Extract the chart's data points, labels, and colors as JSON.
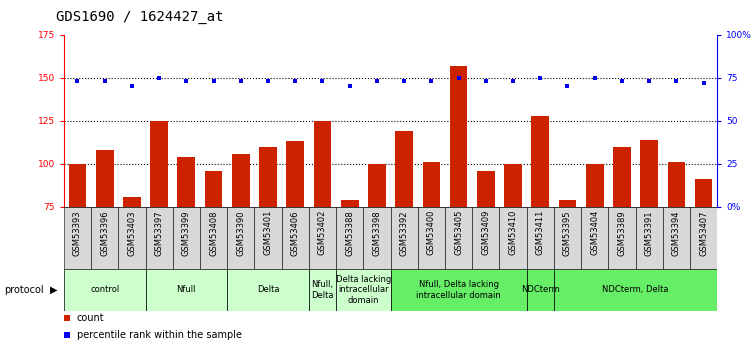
{
  "title": "GDS1690 / 1624427_at",
  "samples": [
    "GSM53393",
    "GSM53396",
    "GSM53403",
    "GSM53397",
    "GSM53399",
    "GSM53408",
    "GSM53390",
    "GSM53401",
    "GSM53406",
    "GSM53402",
    "GSM53388",
    "GSM53398",
    "GSM53392",
    "GSM53400",
    "GSM53405",
    "GSM53409",
    "GSM53410",
    "GSM53411",
    "GSM53395",
    "GSM53404",
    "GSM53389",
    "GSM53391",
    "GSM53394",
    "GSM53407"
  ],
  "counts": [
    100,
    108,
    81,
    125,
    104,
    96,
    106,
    110,
    113,
    125,
    79,
    100,
    119,
    101,
    157,
    96,
    100,
    128,
    79,
    100,
    110,
    114,
    101,
    91
  ],
  "percentile_ranks": [
    73,
    73,
    70,
    75,
    73,
    73,
    73,
    73,
    73,
    73,
    70,
    73,
    73,
    73,
    75,
    73,
    73,
    75,
    70,
    75,
    73,
    73,
    73,
    72
  ],
  "bar_color": "#cc2200",
  "dot_color": "#0000ee",
  "protocol_groups": [
    {
      "label": "control",
      "start": 0,
      "end": 2,
      "color": "#ccffcc"
    },
    {
      "label": "Nfull",
      "start": 3,
      "end": 5,
      "color": "#ccffcc"
    },
    {
      "label": "Delta",
      "start": 6,
      "end": 8,
      "color": "#ccffcc"
    },
    {
      "label": "Nfull,\nDelta",
      "start": 9,
      "end": 9,
      "color": "#ccffcc"
    },
    {
      "label": "Delta lacking\nintracellular\ndomain",
      "start": 10,
      "end": 11,
      "color": "#ccffcc"
    },
    {
      "label": "Nfull, Delta lacking\nintracellular domain",
      "start": 12,
      "end": 16,
      "color": "#66ee66"
    },
    {
      "label": "NDCterm",
      "start": 17,
      "end": 17,
      "color": "#66ee66"
    },
    {
      "label": "NDCterm, Delta",
      "start": 18,
      "end": 23,
      "color": "#66ee66"
    }
  ],
  "ylim_left": [
    75,
    175
  ],
  "ylim_right": [
    0,
    100
  ],
  "yticks_left": [
    75,
    100,
    125,
    150,
    175
  ],
  "yticks_right": [
    0,
    25,
    50,
    75,
    100
  ],
  "ytick_labels_right": [
    "0",
    "25",
    "50",
    "75",
    "100%"
  ],
  "ytick_labels_left": [
    "75",
    "100",
    "125",
    "150",
    "175"
  ],
  "hlines": [
    100,
    125,
    150
  ],
  "title_fontsize": 10,
  "tick_fontsize": 6.5,
  "sample_fontsize": 6,
  "proto_fontsize": 6,
  "legend_fontsize": 7
}
